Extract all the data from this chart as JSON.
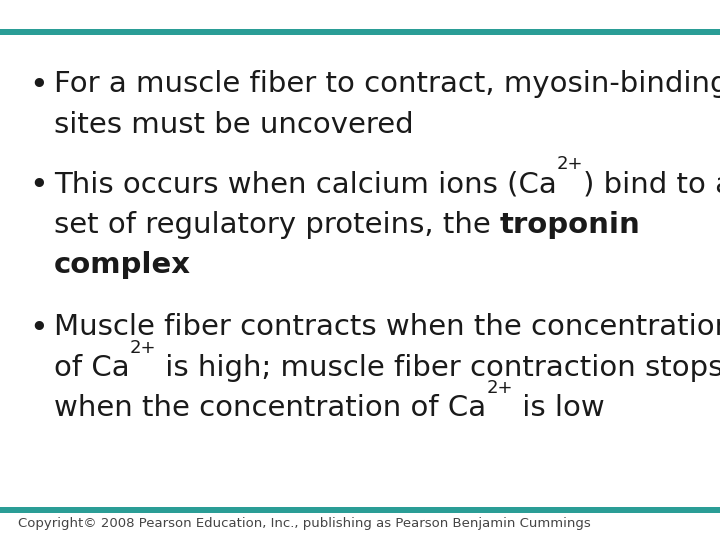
{
  "background_color": "#ffffff",
  "top_bar_color": "#2a9d96",
  "bottom_bar_color": "#2a9d96",
  "bar_thickness": 5,
  "text_color": "#1a1a1a",
  "copyright_color": "#444444",
  "copyright_text": "Copyright© 2008 Pearson Education, Inc., publishing as Pearson Benjamin Cummings",
  "font_size": 21,
  "sup_font_size": 13,
  "copyright_font_size": 9.5,
  "bullet_char": "•",
  "b1l1": "For a muscle fiber to contract, myosin-binding",
  "b1l2": "sites must be uncovered",
  "b2l1a": "This occurs when calcium ions (Ca",
  "b2l1sup": "2+",
  "b2l1b": ") bind to a",
  "b2l2a": "set of regulatory proteins, the ",
  "b2l2bold": "troponin",
  "b2l3bold": "complex",
  "b3l1": "Muscle fiber contracts when the concentration",
  "b3l2a": "of Ca",
  "b3l2sup": "2+",
  "b3l2b": " is high; muscle fiber contraction stops",
  "b3l3a": "when the concentration of Ca",
  "b3l3sup": "2+",
  "b3l3b": " is low"
}
